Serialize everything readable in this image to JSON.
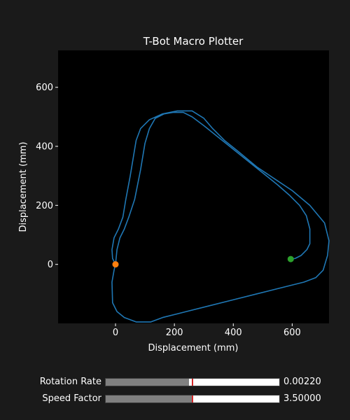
{
  "chart_data": {
    "type": "line",
    "title": "T-Bot Macro Plotter",
    "xlabel": "Displacement (mm)",
    "ylabel": "Displacement (mm)",
    "xlim": [
      -195,
      725
    ],
    "ylim": [
      -200,
      725
    ],
    "xticks": [
      0,
      200,
      400,
      600
    ],
    "yticks": [
      0,
      200,
      400,
      600
    ],
    "grid": false,
    "series": [
      {
        "color": "#1f77b4",
        "points": [
          [
            0,
            0
          ],
          [
            5,
            50
          ],
          [
            15,
            90
          ],
          [
            30,
            120
          ],
          [
            45,
            160
          ],
          [
            65,
            220
          ],
          [
            85,
            320
          ],
          [
            100,
            410
          ],
          [
            115,
            460
          ],
          [
            135,
            495
          ],
          [
            165,
            510
          ],
          [
            195,
            515
          ],
          [
            230,
            515
          ],
          [
            260,
            500
          ],
          [
            300,
            470
          ],
          [
            350,
            430
          ],
          [
            400,
            390
          ],
          [
            450,
            350
          ],
          [
            500,
            310
          ],
          [
            550,
            270
          ],
          [
            590,
            235
          ],
          [
            625,
            200
          ],
          [
            648,
            165
          ],
          [
            660,
            120
          ],
          [
            660,
            70
          ],
          [
            650,
            50
          ],
          [
            630,
            30
          ],
          [
            610,
            20
          ],
          [
            595,
            18
          ]
        ]
      },
      {
        "color": "#1f77b4",
        "points": [
          [
            0,
            0
          ],
          [
            -10,
            20
          ],
          [
            -12,
            50
          ],
          [
            -5,
            90
          ],
          [
            10,
            120
          ],
          [
            25,
            160
          ],
          [
            35,
            220
          ],
          [
            50,
            300
          ],
          [
            60,
            360
          ],
          [
            70,
            420
          ],
          [
            85,
            460
          ],
          [
            115,
            490
          ],
          [
            160,
            510
          ],
          [
            210,
            520
          ],
          [
            260,
            520
          ],
          [
            300,
            495
          ],
          [
            330,
            460
          ],
          [
            370,
            420
          ],
          [
            420,
            380
          ],
          [
            480,
            330
          ],
          [
            540,
            290
          ],
          [
            600,
            250
          ],
          [
            660,
            200
          ],
          [
            710,
            140
          ],
          [
            725,
            80
          ],
          [
            720,
            30
          ],
          [
            705,
            -20
          ],
          [
            680,
            -45
          ],
          [
            640,
            -60
          ],
          [
            560,
            -80
          ],
          [
            480,
            -100
          ],
          [
            400,
            -120
          ],
          [
            320,
            -140
          ],
          [
            240,
            -160
          ],
          [
            160,
            -180
          ],
          [
            120,
            -195
          ],
          [
            70,
            -195
          ],
          [
            30,
            -180
          ],
          [
            5,
            -160
          ],
          [
            -10,
            -130
          ],
          [
            -12,
            -60
          ],
          [
            -5,
            -20
          ],
          [
            0,
            0
          ]
        ]
      }
    ],
    "markers": [
      {
        "x": 0,
        "y": 0,
        "color": "#ff7f0e"
      },
      {
        "x": 595,
        "y": 18,
        "color": "#2ca02c"
      }
    ]
  },
  "sliders": [
    {
      "label": "Rotation Rate",
      "value_text": "0.00220",
      "fill_fraction": 0.48,
      "init_fraction": 0.5
    },
    {
      "label": "Speed Factor",
      "value_text": "3.50000",
      "fill_fraction": 0.5,
      "init_fraction": 0.5
    }
  ]
}
